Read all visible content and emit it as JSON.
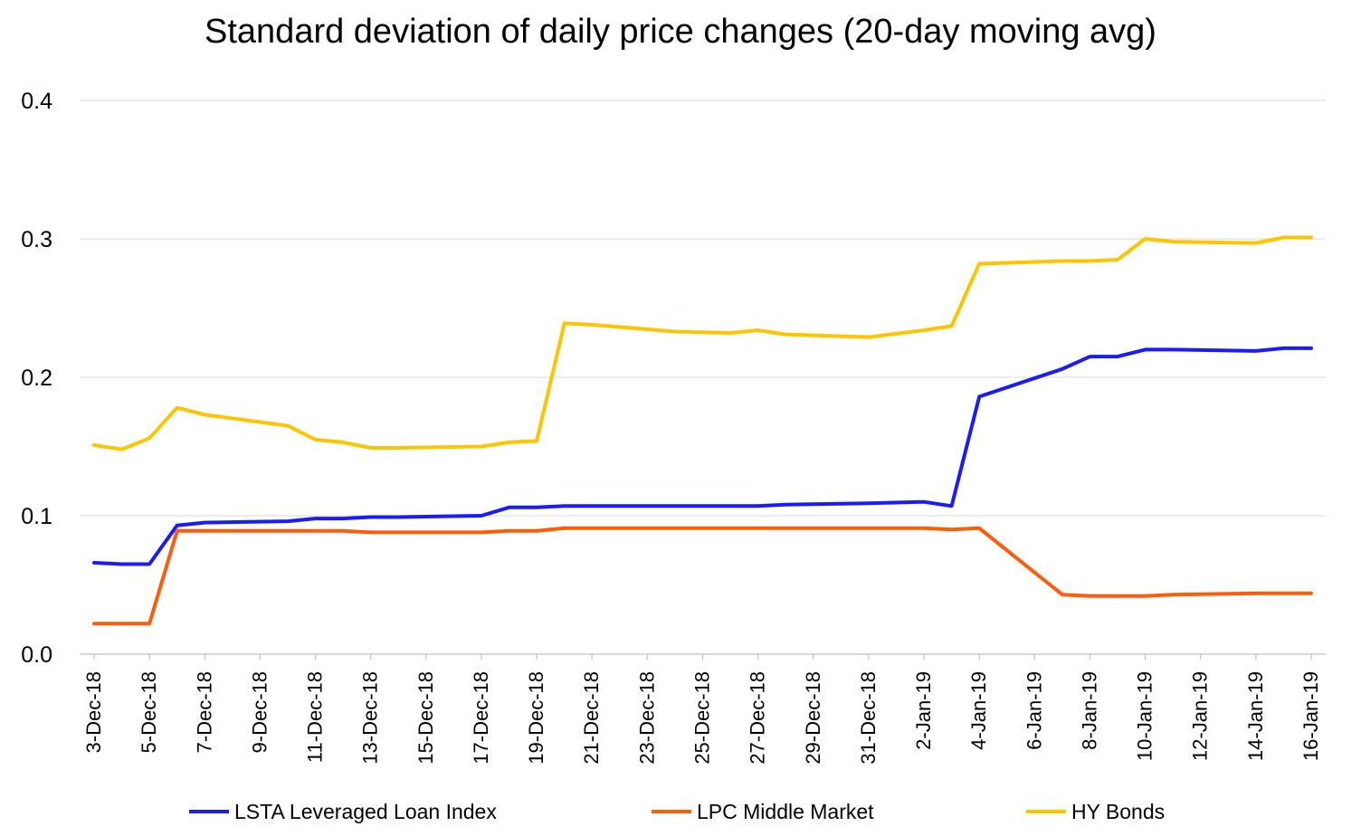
{
  "chart_data": {
    "type": "line",
    "title": "Standard deviation of daily price changes (20-day moving avg)",
    "xlabel": "",
    "ylabel": "",
    "ylim": [
      0,
      0.4
    ],
    "yticks": [
      "0.0",
      "0.1",
      "0.2",
      "0.3",
      "0.4"
    ],
    "grid": true,
    "legend_position": "bottom",
    "x_tick_labels": [
      "3-Dec-18",
      "5-Dec-18",
      "7-Dec-18",
      "9-Dec-18",
      "11-Dec-18",
      "13-Dec-18",
      "15-Dec-18",
      "17-Dec-18",
      "19-Dec-18",
      "21-Dec-18",
      "23-Dec-18",
      "25-Dec-18",
      "27-Dec-18",
      "29-Dec-18",
      "31-Dec-18",
      "2-Jan-19",
      "4-Jan-19",
      "6-Jan-19",
      "8-Jan-19",
      "10-Jan-19",
      "12-Jan-19",
      "14-Jan-19",
      "16-Jan-19"
    ],
    "x": [
      "3-Dec-18",
      "4-Dec-18",
      "5-Dec-18",
      "6-Dec-18",
      "7-Dec-18",
      "10-Dec-18",
      "11-Dec-18",
      "12-Dec-18",
      "13-Dec-18",
      "14-Dec-18",
      "17-Dec-18",
      "18-Dec-18",
      "19-Dec-18",
      "20-Dec-18",
      "21-Dec-18",
      "24-Dec-18",
      "26-Dec-18",
      "27-Dec-18",
      "28-Dec-18",
      "31-Dec-18",
      "2-Jan-19",
      "3-Jan-19",
      "4-Jan-19",
      "7-Jan-19",
      "8-Jan-19",
      "9-Jan-19",
      "10-Jan-19",
      "11-Jan-19",
      "14-Jan-19",
      "15-Jan-19",
      "16-Jan-19"
    ],
    "series": [
      {
        "name": "LSTA Leveraged Loan Index",
        "color": "#1a1aff",
        "values": [
          0.066,
          0.065,
          0.065,
          0.093,
          0.095,
          0.096,
          0.098,
          0.098,
          0.099,
          0.099,
          0.1,
          0.106,
          0.106,
          0.107,
          0.107,
          0.107,
          0.107,
          0.107,
          0.108,
          0.109,
          0.11,
          0.107,
          0.186,
          0.206,
          0.215,
          0.215,
          0.22,
          0.22,
          0.219,
          0.221,
          0.221
        ]
      },
      {
        "name": "LPC Middle Market",
        "color": "#ff5b0a",
        "values": [
          0.022,
          0.022,
          0.022,
          0.089,
          0.089,
          0.089,
          0.089,
          0.089,
          0.088,
          0.088,
          0.088,
          0.089,
          0.089,
          0.091,
          0.091,
          0.091,
          0.091,
          0.091,
          0.091,
          0.091,
          0.091,
          0.09,
          0.091,
          0.043,
          0.042,
          0.042,
          0.042,
          0.043,
          0.044,
          0.044,
          0.044
        ]
      },
      {
        "name": "HY Bonds",
        "color": "#ffc400",
        "values": [
          0.151,
          0.148,
          0.156,
          0.178,
          0.173,
          0.165,
          0.155,
          0.153,
          0.149,
          0.149,
          0.15,
          0.153,
          0.154,
          0.239,
          0.238,
          0.233,
          0.232,
          0.234,
          0.231,
          0.229,
          0.234,
          0.237,
          0.282,
          0.284,
          0.284,
          0.285,
          0.3,
          0.298,
          0.297,
          0.301,
          0.301
        ]
      }
    ]
  }
}
